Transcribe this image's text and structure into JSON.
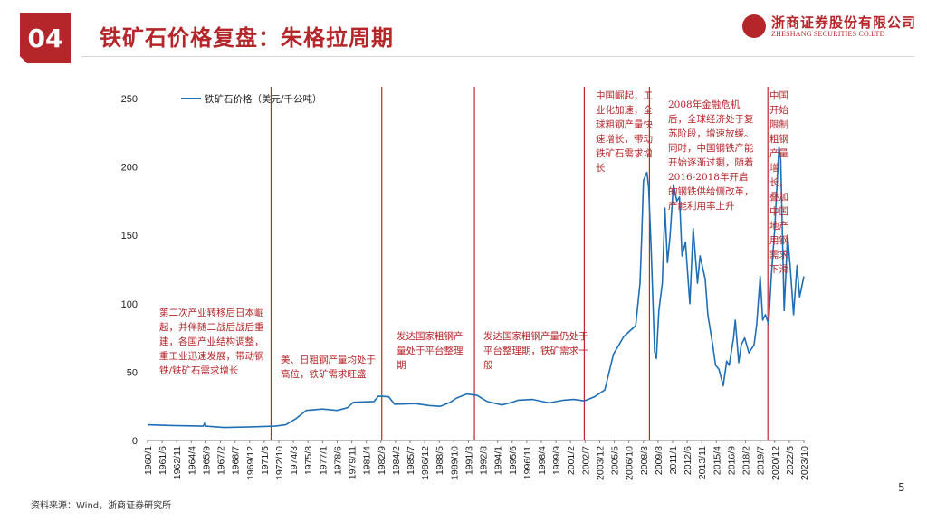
{
  "header": {
    "section_number": "04",
    "title": "铁矿石价格复盘：朱格拉周期",
    "logo_cn": "浙商证券股份有限公司",
    "logo_en": "ZHESHANG SECURITIES CO.LTD"
  },
  "footer": {
    "source": "资料来源：Wind，浙商证券研究所",
    "page_number": "5"
  },
  "colors": {
    "accent": "#b5262b",
    "line": "#1f6fb6"
  },
  "annotations": [
    {
      "id": "a1",
      "text": "第二次产业转移后日本崛起，并伴随二战后战后重建，各国产业结构调整，重工业迅速发展，带动钢铁/铁矿石需求增长"
    },
    {
      "id": "a2",
      "text": "美、日粗钢产量均处于高位，铁矿需求旺盛"
    },
    {
      "id": "a3",
      "text": "发达国家粗钢产量处于平台整理期"
    },
    {
      "id": "a4",
      "text": "发达国家粗钢产量仍处于平台整理期，铁矿需求一般"
    },
    {
      "id": "a5",
      "text": "中国崛起，工业化加速，全球粗钢产量快速增长，带动铁矿石需求增长"
    },
    {
      "id": "a6",
      "text": "2008年金融危机后，全球经济处于复苏阶段，增速放缓。同时，中国钢铁产能开始逐渐过剩，随着2016-2018年开启的钢铁供给侧改革，产能利用率上升"
    },
    {
      "id": "a7",
      "text": "中国开始限制粗钢产量增长，叠加中国地产用钢需求下滑"
    }
  ],
  "chart_data": {
    "type": "line",
    "title": "",
    "xlabel": "",
    "ylabel": "",
    "ylim": [
      0,
      250
    ],
    "yticks": [
      0,
      50,
      100,
      150,
      200,
      250
    ],
    "x_tick_labels": [
      "1960/1",
      "1961/6",
      "1962/11",
      "1964/4",
      "1965/9",
      "1967/2",
      "1968/7",
      "1969/12",
      "1971/5",
      "1972/10",
      "1974/3",
      "1975/8",
      "1977/1",
      "1978/6",
      "1979/11",
      "1981/4",
      "1982/9",
      "1984/2",
      "1985/7",
      "1986/12",
      "1988/5",
      "1989/10",
      "1991/3",
      "1992/8",
      "1994/1",
      "1995/6",
      "1996/11",
      "1998/4",
      "1999/9",
      "2001/2",
      "2002/7",
      "2003/12",
      "2005/5",
      "2006/10",
      "2008/3",
      "2009/8",
      "2011/1",
      "2012/6",
      "2013/11",
      "2015/4",
      "2016/9",
      "2018/2",
      "2019/7",
      "2020/12",
      "2022/5",
      "2023/10"
    ],
    "legend": "top-left",
    "grid": false,
    "series": [
      {
        "name": "铁矿石价格（美元/千公吨）",
        "color": "#1f6fb6",
        "points": [
          [
            "1960-01",
            11.5
          ],
          [
            "1962-06",
            11.0
          ],
          [
            "1965-06",
            10.5
          ],
          [
            "1965-08",
            13.5
          ],
          [
            "1965-09",
            10.5
          ],
          [
            "1967-06",
            9.5
          ],
          [
            "1970-01",
            10.0
          ],
          [
            "1972-06",
            10.5
          ],
          [
            "1973-06",
            11.5
          ],
          [
            "1974-06",
            16.0
          ],
          [
            "1975-06",
            22.0
          ],
          [
            "1977-01",
            23.0
          ],
          [
            "1978-06",
            22.0
          ],
          [
            "1979-06",
            24.0
          ],
          [
            "1980-01",
            28.0
          ],
          [
            "1982-01",
            28.5
          ],
          [
            "1982-06",
            32.5
          ],
          [
            "1983-06",
            32.0
          ],
          [
            "1984-01",
            26.5
          ],
          [
            "1986-01",
            27.0
          ],
          [
            "1987-06",
            25.5
          ],
          [
            "1988-06",
            25.0
          ],
          [
            "1989-06",
            28.0
          ],
          [
            "1990-01",
            31.0
          ],
          [
            "1991-01",
            34.0
          ],
          [
            "1992-01",
            33.0
          ],
          [
            "1993-01",
            28.5
          ],
          [
            "1994-06",
            26.0
          ],
          [
            "1995-06",
            28.0
          ],
          [
            "1996-01",
            29.5
          ],
          [
            "1997-06",
            30.0
          ],
          [
            "1999-01",
            27.5
          ],
          [
            "2000-06",
            29.5
          ],
          [
            "2001-06",
            30.0
          ],
          [
            "2002-06",
            29.0
          ],
          [
            "2003-06",
            32.0
          ],
          [
            "2004-06",
            37.0
          ],
          [
            "2005-04",
            63.0
          ],
          [
            "2006-04",
            76.0
          ],
          [
            "2007-06",
            84.0
          ],
          [
            "2007-11",
            115.0
          ],
          [
            "2008-01",
            150.0
          ],
          [
            "2008-03",
            190.0
          ],
          [
            "2008-07",
            196.0
          ],
          [
            "2008-09",
            185.0
          ],
          [
            "2008-12",
            140.0
          ],
          [
            "2009-04",
            65.0
          ],
          [
            "2009-06",
            60.0
          ],
          [
            "2009-09",
            95.0
          ],
          [
            "2010-01",
            115.0
          ],
          [
            "2010-04",
            170.0
          ],
          [
            "2010-07",
            130.0
          ],
          [
            "2010-10",
            150.0
          ],
          [
            "2011-02",
            187.0
          ],
          [
            "2011-06",
            175.0
          ],
          [
            "2011-09",
            178.0
          ],
          [
            "2011-12",
            135.0
          ],
          [
            "2012-04",
            145.0
          ],
          [
            "2012-09",
            100.0
          ],
          [
            "2013-01",
            155.0
          ],
          [
            "2013-06",
            115.0
          ],
          [
            "2013-09",
            135.0
          ],
          [
            "2014-03",
            118.0
          ],
          [
            "2014-06",
            92.0
          ],
          [
            "2014-12",
            69.0
          ],
          [
            "2015-03",
            55.0
          ],
          [
            "2015-07",
            52.0
          ],
          [
            "2015-12",
            40.0
          ],
          [
            "2016-04",
            58.0
          ],
          [
            "2016-07",
            55.0
          ],
          [
            "2016-12",
            75.0
          ],
          [
            "2017-02",
            88.0
          ],
          [
            "2017-06",
            57.0
          ],
          [
            "2017-09",
            70.0
          ],
          [
            "2018-01",
            75.0
          ],
          [
            "2018-06",
            64.0
          ],
          [
            "2018-12",
            70.0
          ],
          [
            "2019-03",
            85.0
          ],
          [
            "2019-07",
            120.0
          ],
          [
            "2019-10",
            88.0
          ],
          [
            "2020-01",
            92.0
          ],
          [
            "2020-05",
            85.0
          ],
          [
            "2020-08",
            120.0
          ],
          [
            "2020-12",
            155.0
          ],
          [
            "2021-05",
            215.0
          ],
          [
            "2021-07",
            205.0
          ],
          [
            "2021-11",
            95.0
          ],
          [
            "2022-03",
            150.0
          ],
          [
            "2022-06",
            128.0
          ],
          [
            "2022-10",
            92.0
          ],
          [
            "2023-02",
            128.0
          ],
          [
            "2023-05",
            105.0
          ],
          [
            "2023-10",
            120.0
          ]
        ]
      }
    ],
    "vertical_markers": [
      "1972-01",
      "1982-10",
      "1991-10",
      "2002-06",
      "2008-10",
      "2020-04"
    ],
    "marker_color": "#c0262c"
  }
}
